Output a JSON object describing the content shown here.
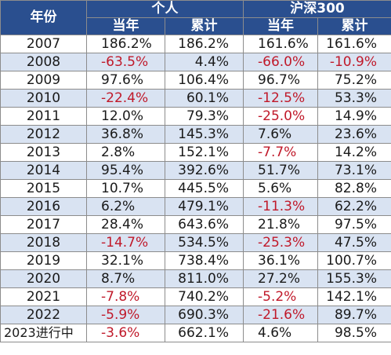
{
  "table": {
    "header_year": "年份",
    "group_personal": "个人",
    "group_index": "沪深300",
    "sub_headers": [
      "当年",
      "累计",
      "当年",
      "累计"
    ],
    "negative_color": "#c0192a",
    "header_bg": "#2a4f8f",
    "stripe_bg": "#d9e3f2",
    "rows": [
      {
        "year": "2007",
        "p_year": "186.2%",
        "p_cum": "186.2%",
        "i_year": "161.6%",
        "i_cum": "161.6%"
      },
      {
        "year": "2008",
        "p_year": "-63.5%",
        "p_cum": "4.4%",
        "i_year": "-66.0%",
        "i_cum": "-10.9%"
      },
      {
        "year": "2009",
        "p_year": "97.6%",
        "p_cum": "106.4%",
        "i_year": "96.7%",
        "i_cum": "75.2%"
      },
      {
        "year": "2010",
        "p_year": "-22.4%",
        "p_cum": "60.1%",
        "i_year": "-12.5%",
        "i_cum": "53.3%"
      },
      {
        "year": "2011",
        "p_year": "12.0%",
        "p_cum": "79.3%",
        "i_year": "-25.0%",
        "i_cum": "14.9%"
      },
      {
        "year": "2012",
        "p_year": "36.8%",
        "p_cum": "145.3%",
        "i_year": "7.6%",
        "i_cum": "23.6%"
      },
      {
        "year": "2013",
        "p_year": "2.8%",
        "p_cum": "152.1%",
        "i_year": "-7.7%",
        "i_cum": "14.2%"
      },
      {
        "year": "2014",
        "p_year": "95.4%",
        "p_cum": "392.6%",
        "i_year": "51.7%",
        "i_cum": "73.1%"
      },
      {
        "year": "2015",
        "p_year": "10.7%",
        "p_cum": "445.5%",
        "i_year": "5.6%",
        "i_cum": "82.8%"
      },
      {
        "year": "2016",
        "p_year": "6.2%",
        "p_cum": "479.1%",
        "i_year": "-11.3%",
        "i_cum": "62.2%"
      },
      {
        "year": "2017",
        "p_year": "28.4%",
        "p_cum": "643.6%",
        "i_year": "21.8%",
        "i_cum": "97.5%"
      },
      {
        "year": "2018",
        "p_year": "-14.7%",
        "p_cum": "534.5%",
        "i_year": "-25.3%",
        "i_cum": "47.5%"
      },
      {
        "year": "2019",
        "p_year": "32.1%",
        "p_cum": "738.4%",
        "i_year": "36.1%",
        "i_cum": "100.7%"
      },
      {
        "year": "2020",
        "p_year": "8.7%",
        "p_cum": "811.0%",
        "i_year": "27.2%",
        "i_cum": "155.3%"
      },
      {
        "year": "2021",
        "p_year": "-7.8%",
        "p_cum": "740.2%",
        "i_year": "-5.2%",
        "i_cum": "142.1%"
      },
      {
        "year": "2022",
        "p_year": "-5.9%",
        "p_cum": "690.3%",
        "i_year": "-21.6%",
        "i_cum": "89.7%"
      },
      {
        "year": "2023进行中",
        "p_year": "-3.6%",
        "p_cum": "662.1%",
        "i_year": "4.6%",
        "i_cum": "98.5%"
      }
    ]
  }
}
